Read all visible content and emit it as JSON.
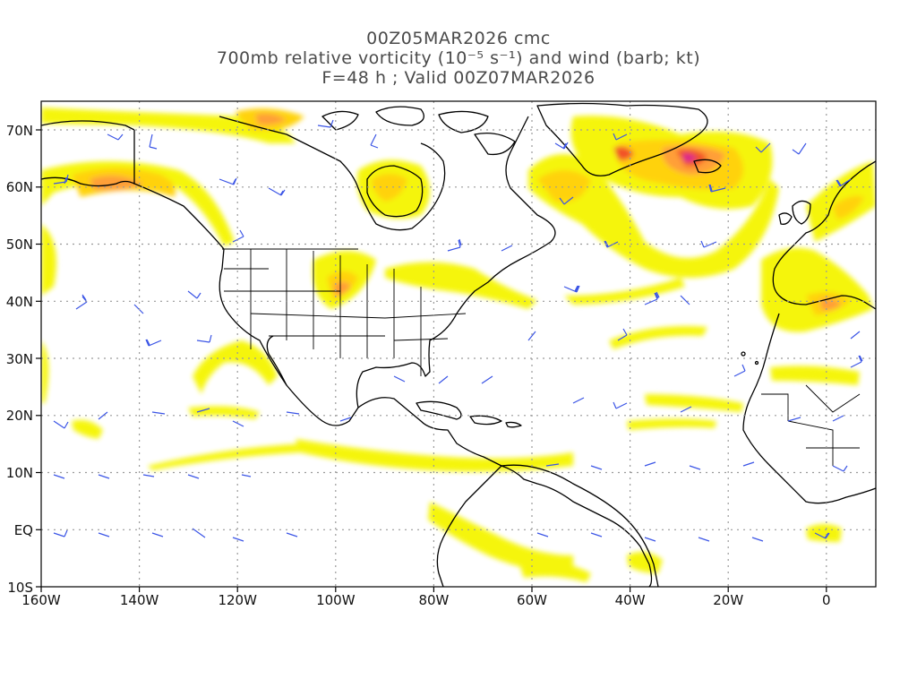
{
  "title": {
    "line1": "00Z05MAR2026 cmc",
    "line2": "700mb relative vorticity (10⁻⁵ s⁻¹) and wind (barb; kt)",
    "line3": "F=48 h ; Valid 00Z07MAR2026"
  },
  "axes": {
    "lat_labels": [
      "70N",
      "60N",
      "50N",
      "40N",
      "30N",
      "20N",
      "10N",
      "EQ",
      "10S"
    ],
    "lon_labels": [
      "160W",
      "140W",
      "120W",
      "100W",
      "80W",
      "60W",
      "40W",
      "20W",
      "0"
    ]
  },
  "colors": {
    "vort_low": "#f5f500",
    "vort_mid": "#ffd000",
    "vort_high": "#ff9a2e",
    "vort_peak": "#f24a1a",
    "vort_max": "#d9138a",
    "barb": "#3b55e6",
    "coast": "#000000",
    "grid": "#9a9a9a"
  }
}
